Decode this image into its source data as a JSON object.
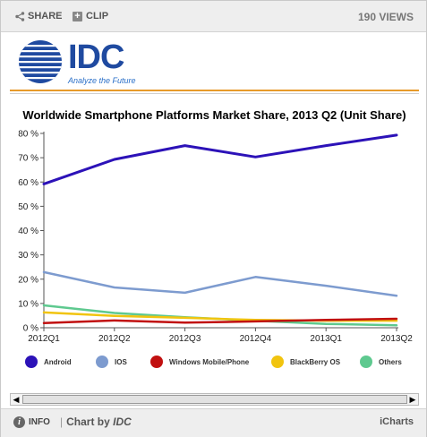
{
  "toolbar": {
    "share_label": "SHARE",
    "clip_label": "CLIP",
    "views_label": "190 VIEWS"
  },
  "logo": {
    "word": "IDC",
    "tagline": "Analyze the Future"
  },
  "colors": {
    "Android": "#2c12b8",
    "iOS": "#7d9bcf",
    "Windows": "#c11010",
    "BlackBerry": "#f1c40f",
    "Others": "#5ec98f"
  },
  "chart_data": {
    "type": "line",
    "title": "Worldwide Smartphone Platforms Market Share, 2013 Q2 (Unit Share)",
    "categories": [
      "2012Q1",
      "2012Q2",
      "2012Q3",
      "2012Q4",
      "2013Q1",
      "2013Q2"
    ],
    "ylim": [
      0,
      80
    ],
    "yticks": [
      "0 %",
      "10 %",
      "20 %",
      "30 %",
      "40 %",
      "50 %",
      "60 %",
      "70 %",
      "80 %"
    ],
    "grid": false,
    "legend_position": "bottom",
    "series": [
      {
        "name": "Android",
        "values": [
          59.2,
          69.3,
          75.0,
          70.3,
          75.0,
          79.3
        ]
      },
      {
        "name": "IOS",
        "values": [
          22.9,
          16.6,
          14.4,
          20.9,
          17.3,
          13.2
        ]
      },
      {
        "name": "Windows Mobile/Phone",
        "values": [
          1.9,
          3.0,
          2.1,
          2.6,
          3.2,
          3.7
        ]
      },
      {
        "name": "BlackBerry OS",
        "values": [
          6.3,
          4.9,
          4.1,
          3.2,
          2.9,
          2.9
        ]
      },
      {
        "name": "Others",
        "values": [
          9.2,
          6.1,
          4.3,
          2.9,
          1.6,
          1.0
        ]
      }
    ]
  },
  "footer": {
    "info_label": "INFO",
    "chartby_label": "Chart by",
    "source": "IDC",
    "brand": "iCharts"
  }
}
